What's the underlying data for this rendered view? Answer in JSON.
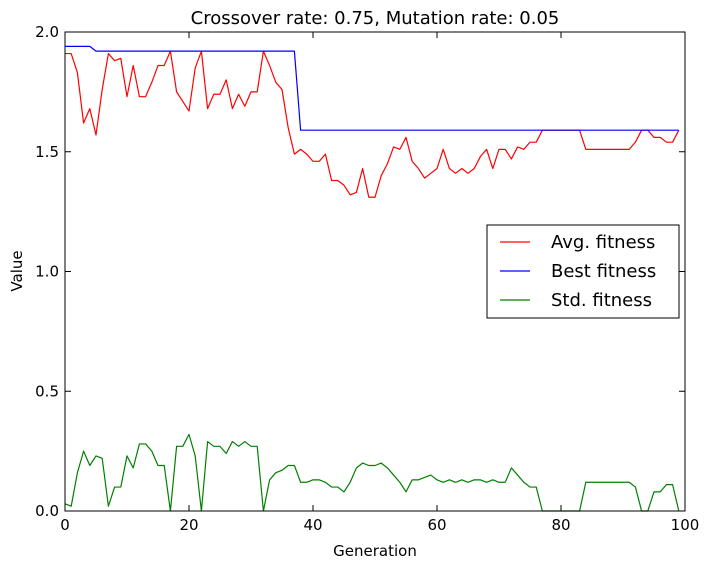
{
  "chart_data": {
    "type": "line",
    "title": "Crossover rate: 0.75, Mutation rate: 0.05",
    "xlabel": "Generation",
    "ylabel": "Value",
    "xlim": [
      0,
      100
    ],
    "ylim": [
      0.0,
      2.0
    ],
    "xticks": [
      "0",
      "20",
      "40",
      "60",
      "80",
      "100"
    ],
    "yticks": [
      "0.0",
      "0.5",
      "1.0",
      "1.5",
      "2.0"
    ],
    "grid": false,
    "legend_position": "right",
    "series": [
      {
        "name": "Avg. fitness",
        "color": "#ff0000",
        "x": [
          0,
          1,
          2,
          3,
          4,
          5,
          6,
          7,
          8,
          9,
          10,
          11,
          12,
          13,
          14,
          15,
          16,
          17,
          18,
          19,
          20,
          21,
          22,
          23,
          24,
          25,
          26,
          27,
          28,
          29,
          30,
          31,
          32,
          33,
          34,
          35,
          36,
          37,
          38,
          39,
          40,
          41,
          42,
          43,
          44,
          45,
          46,
          47,
          48,
          49,
          50,
          51,
          52,
          53,
          54,
          55,
          56,
          57,
          58,
          59,
          60,
          61,
          62,
          63,
          64,
          65,
          66,
          67,
          68,
          69,
          70,
          71,
          72,
          73,
          74,
          75,
          76,
          77,
          78,
          79,
          80,
          81,
          82,
          83,
          84,
          85,
          86,
          87,
          88,
          89,
          90,
          91,
          92,
          93,
          94,
          95,
          96,
          97,
          98,
          99
        ],
        "y": [
          1.91,
          1.91,
          1.83,
          1.62,
          1.68,
          1.57,
          1.76,
          1.91,
          1.88,
          1.89,
          1.73,
          1.86,
          1.73,
          1.73,
          1.79,
          1.86,
          1.86,
          1.92,
          1.75,
          1.71,
          1.67,
          1.85,
          1.92,
          1.68,
          1.74,
          1.74,
          1.8,
          1.68,
          1.74,
          1.69,
          1.75,
          1.75,
          1.92,
          1.86,
          1.79,
          1.76,
          1.6,
          1.49,
          1.51,
          1.49,
          1.46,
          1.46,
          1.49,
          1.38,
          1.38,
          1.36,
          1.32,
          1.33,
          1.43,
          1.31,
          1.31,
          1.4,
          1.45,
          1.52,
          1.51,
          1.56,
          1.46,
          1.43,
          1.39,
          1.41,
          1.43,
          1.51,
          1.43,
          1.41,
          1.43,
          1.41,
          1.43,
          1.48,
          1.51,
          1.43,
          1.51,
          1.51,
          1.47,
          1.52,
          1.51,
          1.54,
          1.54,
          1.59,
          1.59,
          1.59,
          1.59,
          1.59,
          1.59,
          1.59,
          1.51,
          1.51,
          1.51,
          1.51,
          1.51,
          1.51,
          1.51,
          1.51,
          1.54,
          1.59,
          1.59,
          1.56,
          1.56,
          1.54,
          1.54,
          1.59
        ]
      },
      {
        "name": "Best fitness",
        "color": "#0000ff",
        "x": [
          0,
          4,
          5,
          37,
          38,
          99
        ],
        "y": [
          1.94,
          1.94,
          1.92,
          1.92,
          1.59,
          1.59
        ]
      },
      {
        "name": "Std. fitness",
        "color": "#008000",
        "x": [
          0,
          1,
          2,
          3,
          4,
          5,
          6,
          7,
          8,
          9,
          10,
          11,
          12,
          13,
          14,
          15,
          16,
          17,
          18,
          19,
          20,
          21,
          22,
          23,
          24,
          25,
          26,
          27,
          28,
          29,
          30,
          31,
          32,
          33,
          34,
          35,
          36,
          37,
          38,
          39,
          40,
          41,
          42,
          43,
          44,
          45,
          46,
          47,
          48,
          49,
          50,
          51,
          52,
          53,
          54,
          55,
          56,
          57,
          58,
          59,
          60,
          61,
          62,
          63,
          64,
          65,
          66,
          67,
          68,
          69,
          70,
          71,
          72,
          73,
          74,
          75,
          76,
          77,
          78,
          79,
          80,
          81,
          82,
          83,
          84,
          85,
          86,
          87,
          88,
          89,
          90,
          91,
          92,
          93,
          94,
          95,
          96,
          97,
          98,
          99
        ],
        "y": [
          0.03,
          0.02,
          0.16,
          0.25,
          0.19,
          0.23,
          0.22,
          0.02,
          0.1,
          0.1,
          0.23,
          0.18,
          0.28,
          0.28,
          0.25,
          0.19,
          0.19,
          0.0,
          0.27,
          0.27,
          0.32,
          0.23,
          0.0,
          0.29,
          0.27,
          0.27,
          0.24,
          0.29,
          0.27,
          0.29,
          0.27,
          0.27,
          0.0,
          0.13,
          0.16,
          0.17,
          0.19,
          0.19,
          0.12,
          0.12,
          0.13,
          0.13,
          0.12,
          0.1,
          0.1,
          0.08,
          0.12,
          0.18,
          0.2,
          0.19,
          0.19,
          0.2,
          0.18,
          0.15,
          0.12,
          0.08,
          0.13,
          0.13,
          0.14,
          0.15,
          0.13,
          0.12,
          0.13,
          0.12,
          0.13,
          0.12,
          0.13,
          0.13,
          0.12,
          0.13,
          0.12,
          0.12,
          0.18,
          0.15,
          0.12,
          0.1,
          0.1,
          0.0,
          0.0,
          0.0,
          0.0,
          0.0,
          0.0,
          0.0,
          0.12,
          0.12,
          0.12,
          0.12,
          0.12,
          0.12,
          0.12,
          0.12,
          0.1,
          0.0,
          0.0,
          0.08,
          0.08,
          0.11,
          0.11,
          0.0
        ]
      }
    ]
  }
}
